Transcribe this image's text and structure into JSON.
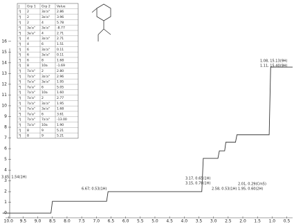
{
  "table": {
    "header": [
      "J",
      "Grp 1",
      "Grp 2",
      "Value"
    ],
    "rows": [
      [
        "³J",
        "2",
        "3a'a\"",
        "2.86"
      ],
      [
        "³J",
        "2",
        "3a'a\"",
        "3.96"
      ],
      [
        "³J",
        "2",
        "4",
        "5.78"
      ],
      [
        "²J",
        "3a'a\"",
        "3a'a\"",
        "-8.77"
      ],
      [
        "³J",
        "3a'a\"",
        "4",
        "2.71"
      ],
      [
        "³J",
        "4",
        "3a'a\"",
        "2.71"
      ],
      [
        "³J",
        "4",
        "6",
        "1.51"
      ],
      [
        "³J",
        "6",
        "3a'a\"",
        "0.11"
      ],
      [
        "³J",
        "6",
        "3a'a\"",
        "0.11"
      ],
      [
        "³J",
        "6",
        "8",
        "1.68"
      ],
      [
        "²J",
        "8",
        "10a",
        "-1.69"
      ],
      [
        "³J",
        "7a'a\"",
        "2",
        "2.80"
      ],
      [
        "³J",
        "7a'a\"",
        "3a'a\"",
        "2.96"
      ],
      [
        "³J",
        "7a'a\"",
        "3a'a\"",
        "1.95"
      ],
      [
        "³J",
        "7a'a\"",
        "6",
        "5.05"
      ],
      [
        "³J",
        "7a'a\"",
        "10a",
        "1.60"
      ],
      [
        "³J",
        "7a'a\"",
        "2",
        "2.77"
      ],
      [
        "³J",
        "7a'a\"",
        "3a'a\"",
        "1.95"
      ],
      [
        "³J",
        "7a'a\"",
        "3a'a\"",
        "1.68"
      ],
      [
        "³J",
        "7a'a\"",
        "6",
        "3.61"
      ],
      [
        "²J",
        "7a'a\"",
        "7a'a\"",
        "-13.00"
      ],
      [
        "³J",
        "7a'a\"",
        "10a",
        "1.90"
      ],
      [
        "³J",
        "8",
        "9",
        "5.21"
      ],
      [
        "³J",
        "8",
        "9",
        "5.21"
      ]
    ]
  },
  "chart_data": {
    "type": "line",
    "x": [
      10.2,
      8.55,
      8.5,
      6.65,
      6.6,
      3.4,
      3.35,
      2.85,
      2.8,
      2.62,
      2.58,
      2.25,
      2.2,
      1.1,
      1.05,
      0.3
    ],
    "series": [
      {
        "color": "#333333",
        "values": [
          0,
          0,
          1.1,
          1.1,
          2.0,
          2.0,
          5.1,
          5.1,
          5.8,
          5.8,
          6.6,
          6.6,
          7.3,
          7.3,
          13.6,
          13.6
        ]
      }
    ],
    "xlim": [
      10.1,
      0.3
    ],
    "ylim": [
      -0.5,
      19.85
    ],
    "xticks": [
      {
        "value": 10,
        "label": "10.0"
      },
      9.5,
      {
        "value": 9,
        "label": "9.0"
      },
      8.5,
      {
        "value": 8,
        "label": "8.0"
      },
      7.5,
      {
        "value": 7,
        "label": "7.0"
      },
      6.5,
      {
        "value": 6,
        "label": "6.0"
      },
      5.5,
      {
        "value": 5,
        "label": "5.0"
      },
      4.5,
      {
        "value": 4,
        "label": "4.0"
      },
      3.5,
      {
        "value": 3,
        "label": "3.0"
      },
      2.5,
      {
        "value": 2,
        "label": "2.0"
      },
      1.5,
      {
        "value": 1,
        "label": "1.0"
      },
      0.5
    ],
    "yticks": [
      0,
      1,
      2,
      3,
      4,
      5,
      6,
      7,
      8,
      9,
      10,
      11,
      12,
      13,
      14,
      15,
      16
    ],
    "annotations": [
      "3.45; 1.54(1H)",
      "6.67; 0.53(1H)",
      "3.17, 0.65(1H)",
      "3.15, 0.78(1H)",
      "2.58, 0.53(1H)",
      "2.01, 0.29(Cm5)",
      "1.95, 0.60(2H)",
      "1.08, 15.13(9H)",
      "1.11, 15.40(9H)"
    ]
  }
}
